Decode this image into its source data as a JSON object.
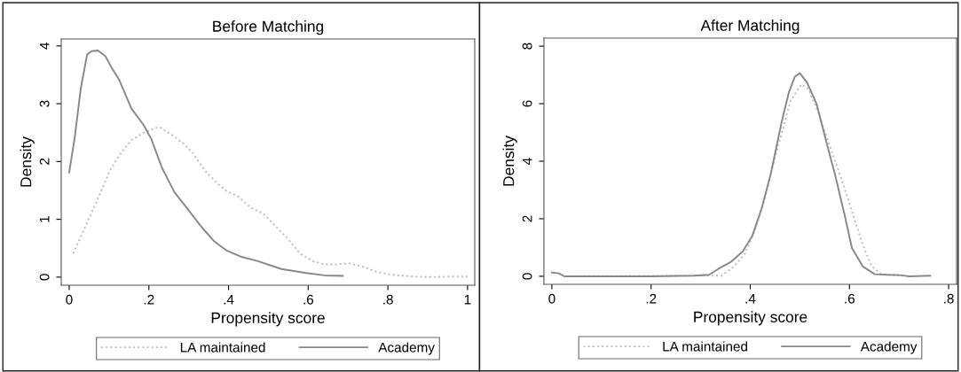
{
  "chart_data": [
    {
      "type": "line",
      "title": "Before Matching",
      "xlabel": "Propensity score",
      "ylabel": "Density",
      "xlim": [
        -0.02,
        1.018
      ],
      "ylim": [
        -0.14,
        4.12
      ],
      "xticks": [
        0,
        {
          "value": 0.2,
          "label": ".2"
        },
        {
          "value": 0.4,
          "label": ".4"
        },
        {
          "value": 0.6,
          "label": ".6"
        },
        {
          "value": 0.8,
          "label": ".8"
        },
        1
      ],
      "yticks": [
        0,
        1,
        2,
        3,
        4
      ],
      "grid": false,
      "legend": "bottom",
      "series": [
        {
          "name": "LA maintained",
          "color": "#bbbbbb",
          "line_style": "dotted",
          "x": [
            0.01,
            0.041,
            0.072,
            0.102,
            0.125,
            0.156,
            0.187,
            0.225,
            0.256,
            0.287,
            0.31,
            0.341,
            0.372,
            0.395,
            0.425,
            0.456,
            0.487,
            0.518,
            0.548,
            0.579,
            0.61,
            0.641,
            0.672,
            0.702,
            0.733,
            0.772,
            0.81,
            0.864,
            0.91,
            0.956,
            1.0
          ],
          "values": [
            0.41,
            0.88,
            1.36,
            1.84,
            2.1,
            2.37,
            2.5,
            2.6,
            2.47,
            2.31,
            2.15,
            1.84,
            1.62,
            1.49,
            1.39,
            1.2,
            1.1,
            0.88,
            0.67,
            0.41,
            0.28,
            0.22,
            0.22,
            0.24,
            0.19,
            0.09,
            0.04,
            0.01,
            0.0,
            0.01,
            0.01
          ]
        },
        {
          "name": "Academy",
          "color": "#888888",
          "line_style": "solid",
          "x": [
            0,
            0.014,
            0.029,
            0.045,
            0.056,
            0.072,
            0.091,
            0.106,
            0.125,
            0.156,
            0.187,
            0.206,
            0.233,
            0.264,
            0.295,
            0.333,
            0.364,
            0.395,
            0.433,
            0.472,
            0.533,
            0.595,
            0.641,
            0.687
          ],
          "values": [
            1.81,
            2.42,
            3.26,
            3.85,
            3.91,
            3.92,
            3.82,
            3.63,
            3.42,
            2.92,
            2.63,
            2.39,
            1.89,
            1.47,
            1.2,
            0.86,
            0.62,
            0.46,
            0.35,
            0.28,
            0.14,
            0.07,
            0.03,
            0.02
          ]
        }
      ]
    },
    {
      "type": "line",
      "title": "After Matching",
      "xlabel": "Propensity score",
      "ylabel": "Density",
      "xlim": [
        -0.016,
        0.816
      ],
      "ylim": [
        -0.28,
        8.28
      ],
      "xticks": [
        0,
        {
          "value": 0.2,
          "label": ".2"
        },
        {
          "value": 0.4,
          "label": ".4"
        },
        {
          "value": 0.6,
          "label": ".6"
        },
        {
          "value": 0.8,
          "label": ".8"
        }
      ],
      "yticks": [
        0,
        2,
        4,
        6,
        8
      ],
      "grid": false,
      "legend": "bottom",
      "series": [
        {
          "name": "LA maintained",
          "color": "#bbbbbb",
          "line_style": "dotted",
          "x": [
            0.027,
            0.286,
            0.342,
            0.367,
            0.389,
            0.41,
            0.429,
            0.447,
            0.466,
            0.481,
            0.503,
            0.518,
            0.54,
            0.559,
            0.583,
            0.605,
            0.627,
            0.645,
            0.664,
            0.695,
            0.72
          ],
          "values": [
            0,
            0.02,
            0.02,
            0.34,
            0.77,
            1.62,
            2.68,
            3.96,
            5.13,
            6.09,
            6.67,
            6.51,
            5.55,
            4.6,
            3.43,
            2.26,
            1.09,
            0.34,
            0.07,
            0.04,
            0
          ]
        },
        {
          "name": "Academy",
          "color": "#888888",
          "line_style": "solid",
          "x": [
            0,
            0.014,
            0.025,
            0.2,
            0.286,
            0.317,
            0.336,
            0.361,
            0.385,
            0.404,
            0.423,
            0.441,
            0.463,
            0.478,
            0.49,
            0.5,
            0.515,
            0.534,
            0.553,
            0.571,
            0.59,
            0.605,
            0.627,
            0.651,
            0.676,
            0.701,
            0.72,
            0.763
          ],
          "values": [
            0.13,
            0.1,
            0,
            0,
            0.02,
            0.05,
            0.26,
            0.5,
            0.87,
            1.4,
            2.36,
            3.53,
            5.34,
            6.4,
            6.94,
            7.06,
            6.72,
            5.98,
            4.7,
            3.53,
            2.15,
            0.98,
            0.34,
            0.07,
            0.05,
            0.04,
            0,
            0.02
          ]
        }
      ]
    }
  ]
}
